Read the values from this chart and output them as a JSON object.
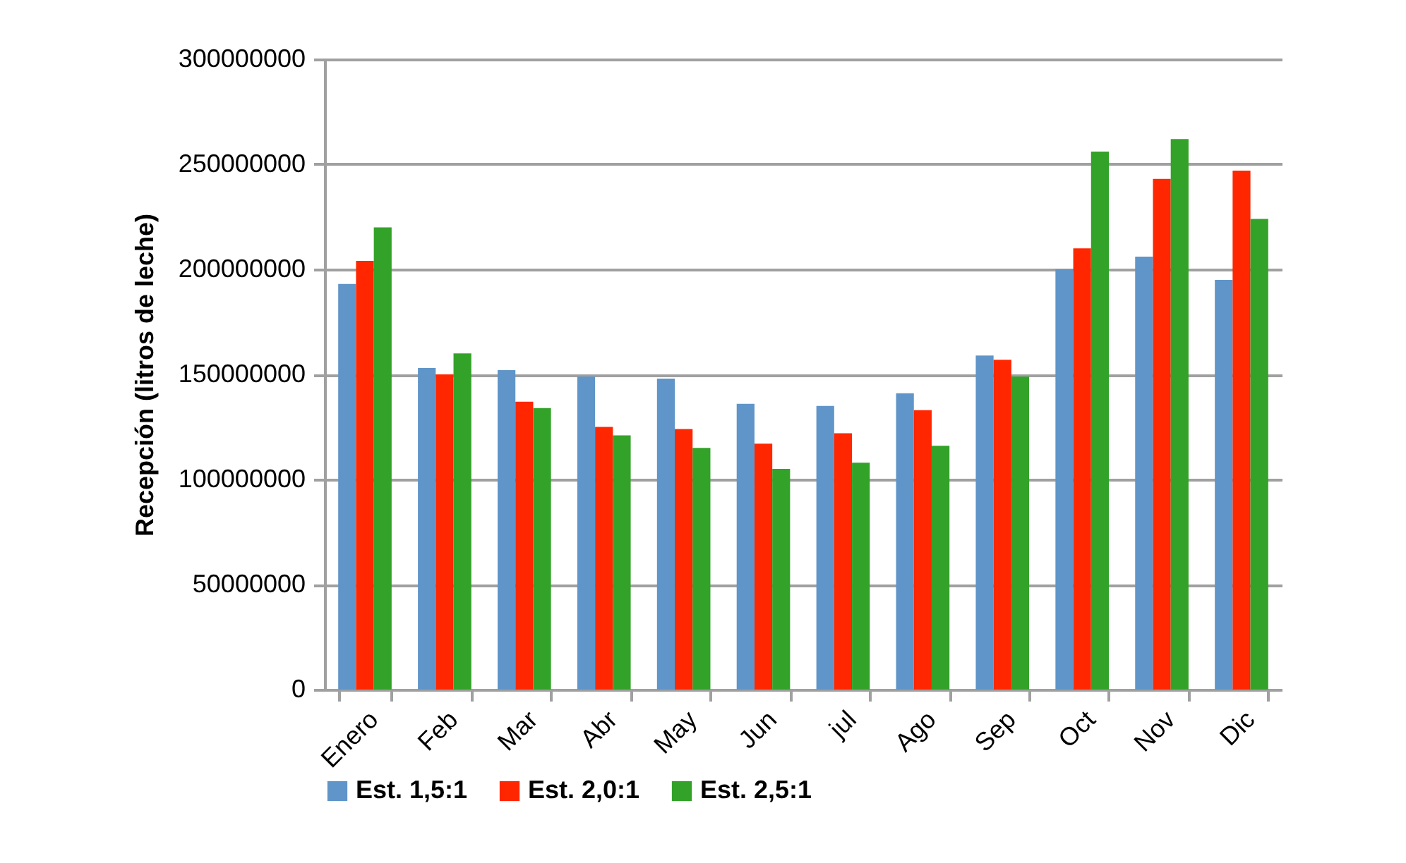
{
  "chart_data": {
    "type": "bar",
    "ylabel": "Recepción (litros de leche)",
    "categories": [
      "Enero",
      "Feb",
      "Mar",
      "Abr",
      "May",
      "Jun",
      "jul",
      "Ago",
      "Sep",
      "Oct",
      "Nov",
      "Dic"
    ],
    "series": [
      {
        "name": "Est. 1,5:1",
        "color": "#5f95c8",
        "values": [
          193000000,
          153000000,
          152000000,
          149000000,
          148000000,
          136000000,
          135000000,
          141000000,
          159000000,
          200000000,
          206000000,
          195000000
        ]
      },
      {
        "name": "Est. 2,0:1",
        "color": "#ff2600",
        "values": [
          204000000,
          150000000,
          137000000,
          125000000,
          124000000,
          117000000,
          122000000,
          133000000,
          157000000,
          210000000,
          243000000,
          247000000
        ]
      },
      {
        "name": "Est. 2,5:1",
        "color": "#33a229",
        "values": [
          220000000,
          160000000,
          134000000,
          121000000,
          115000000,
          105000000,
          108000000,
          116000000,
          149000000,
          256000000,
          262000000,
          224000000
        ]
      }
    ],
    "ylim": [
      0,
      300000000
    ],
    "yticks": [
      0,
      50000000,
      100000000,
      150000000,
      200000000,
      250000000,
      300000000
    ],
    "grid": "y",
    "legend": "bottom"
  }
}
